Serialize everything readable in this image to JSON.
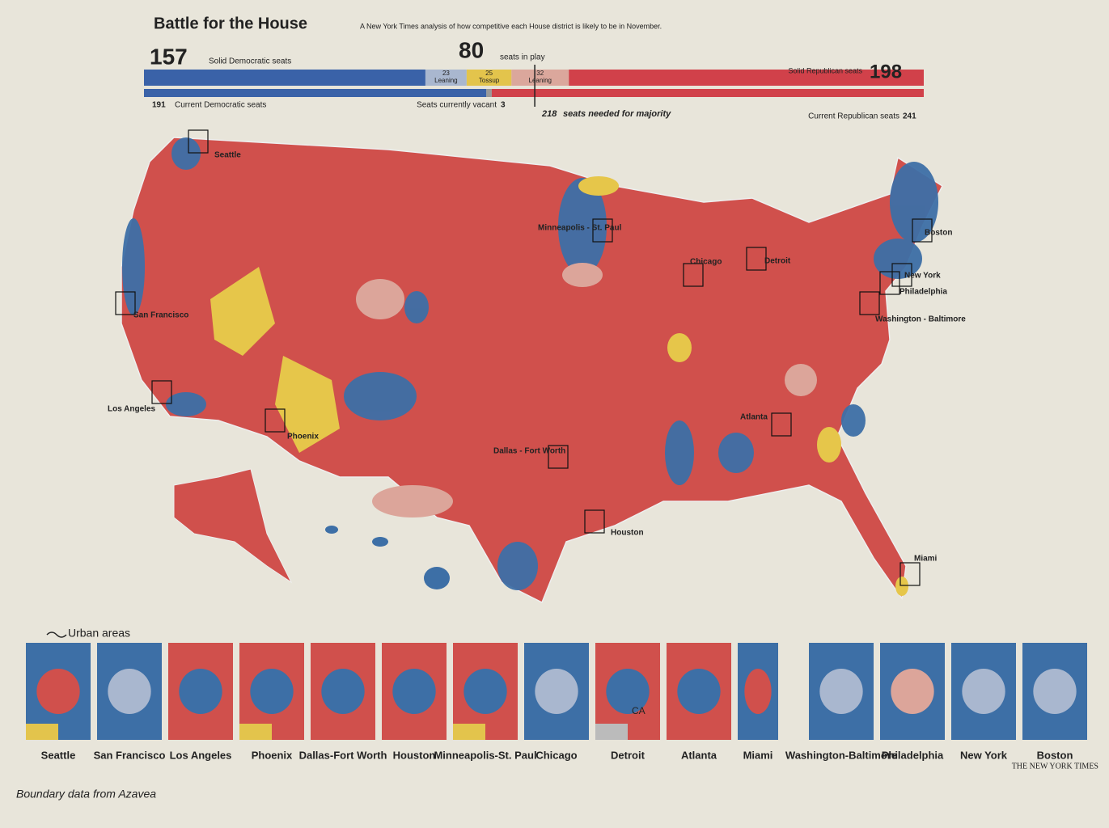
{
  "header": {
    "title": "Battle for the House",
    "subtitle": "A New York Times analysis of how competitive each House district is likely to be in November."
  },
  "seats": {
    "solid_dem": {
      "value": 157,
      "label": "Solid Democratic seats"
    },
    "in_play": {
      "value": 80,
      "label": "seats in play"
    },
    "segments": [
      {
        "value": 23,
        "label": "Leaning"
      },
      {
        "value": 25,
        "label": "Tossup"
      },
      {
        "value": 32,
        "label": "Leaning"
      }
    ],
    "solid_rep": {
      "value": 198,
      "label": "Solid Republican seats"
    },
    "current_dem": {
      "value": 191,
      "label": "Current Democratic seats"
    },
    "vacant": {
      "value": 3,
      "label": "Seats currently vacant"
    },
    "majority": {
      "value": 218,
      "label": "seats needed for majority"
    },
    "current_rep": {
      "value": 241,
      "label": "Current Republican seats"
    }
  },
  "map": {
    "cities": [
      "Seattle",
      "San Francisco",
      "Los Angeles",
      "Phoenix",
      "Dallas - Fort Worth",
      "Houston",
      "Minneapolis - St. Paul",
      "Chicago",
      "Detroit",
      "Atlanta",
      "Miami",
      "Washington - Baltimore",
      "Philadelphia",
      "New York",
      "Boston"
    ]
  },
  "legend": "Urban areas",
  "insets": [
    "Seattle",
    "San Francisco",
    "Los Angeles",
    "Phoenix",
    "Dallas-Fort Worth",
    "Houston",
    "Minneapolis-St. Paul",
    "Chicago",
    "Detroit",
    "Atlanta",
    "Miami",
    "Washington-Baltimore",
    "Philadelphia",
    "New York",
    "Boston"
  ],
  "inset_note": "CA",
  "credit": "Boundary data from Azavea",
  "source": "THE NEW YORK TIMES"
}
